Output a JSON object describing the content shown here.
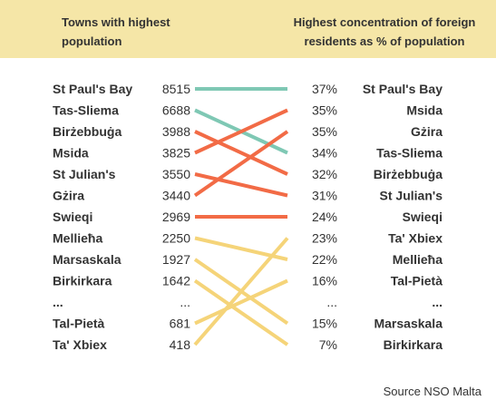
{
  "header": {
    "left_title": "Towns with highest population",
    "right_title": "Highest concentration of foreign residents as % of population"
  },
  "source": "Source NSO Malta",
  "colors": {
    "header_bg": "#f5e6a7",
    "teal": "#7fc8b4",
    "red": "#f26b46",
    "yellow": "#f5d479"
  },
  "chart_data": {
    "type": "slope",
    "left_title": "Towns with highest population",
    "right_title": "Highest concentration of foreign residents as % of population",
    "left": [
      {
        "town": "St Paul's Bay",
        "population": "8515"
      },
      {
        "town": "Tas-Sliema",
        "population": "6688"
      },
      {
        "town": "Birżebbuġa",
        "population": "3988"
      },
      {
        "town": "Msida",
        "population": "3825"
      },
      {
        "town": "St Julian's",
        "population": "3550"
      },
      {
        "town": "Gżira",
        "population": "3440"
      },
      {
        "town": "Swieqi",
        "population": "2969"
      },
      {
        "town": "Mellieħa",
        "population": "2250"
      },
      {
        "town": "Marsaskala",
        "population": "1927"
      },
      {
        "town": "Birkirkara",
        "population": "1642"
      },
      {
        "town": "...",
        "population": "..."
      },
      {
        "town": "Tal-Pietà",
        "population": "681"
      },
      {
        "town": "Ta' Xbiex",
        "population": "418"
      }
    ],
    "right": [
      {
        "town": "St Paul's Bay",
        "percent": "37%"
      },
      {
        "town": "Msida",
        "percent": "35%"
      },
      {
        "town": "Gżira",
        "percent": "35%"
      },
      {
        "town": "Tas-Sliema",
        "percent": "34%"
      },
      {
        "town": "Birżebbuġa",
        "percent": "32%"
      },
      {
        "town": "St Julian's",
        "percent": "31%"
      },
      {
        "town": "Swieqi",
        "percent": "24%"
      },
      {
        "town": "Ta' Xbiex",
        "percent": "23%"
      },
      {
        "town": "Mellieħa",
        "percent": "22%"
      },
      {
        "town": "Tal-Pietà",
        "percent": "16%"
      },
      {
        "town": "...",
        "percent": "..."
      },
      {
        "town": "Marsaskala",
        "percent": "15%"
      },
      {
        "town": "Birkirkara",
        "percent": "7%"
      }
    ],
    "links": [
      {
        "town": "St Paul's Bay",
        "from": 0,
        "to": 0,
        "color": "teal"
      },
      {
        "town": "Tas-Sliema",
        "from": 1,
        "to": 3,
        "color": "teal"
      },
      {
        "town": "Birżebbuġa",
        "from": 2,
        "to": 4,
        "color": "red"
      },
      {
        "town": "Msida",
        "from": 3,
        "to": 1,
        "color": "red"
      },
      {
        "town": "St Julian's",
        "from": 4,
        "to": 5,
        "color": "red"
      },
      {
        "town": "Gżira",
        "from": 5,
        "to": 2,
        "color": "red"
      },
      {
        "town": "Swieqi",
        "from": 6,
        "to": 6,
        "color": "red"
      },
      {
        "town": "Mellieħa",
        "from": 7,
        "to": 8,
        "color": "yellow"
      },
      {
        "town": "Marsaskala",
        "from": 8,
        "to": 11,
        "color": "yellow"
      },
      {
        "town": "Birkirkara",
        "from": 9,
        "to": 12,
        "color": "yellow"
      },
      {
        "town": "Tal-Pietà",
        "from": 11,
        "to": 9,
        "color": "yellow"
      },
      {
        "town": "Ta' Xbiex",
        "from": 12,
        "to": 7,
        "color": "yellow"
      }
    ]
  }
}
